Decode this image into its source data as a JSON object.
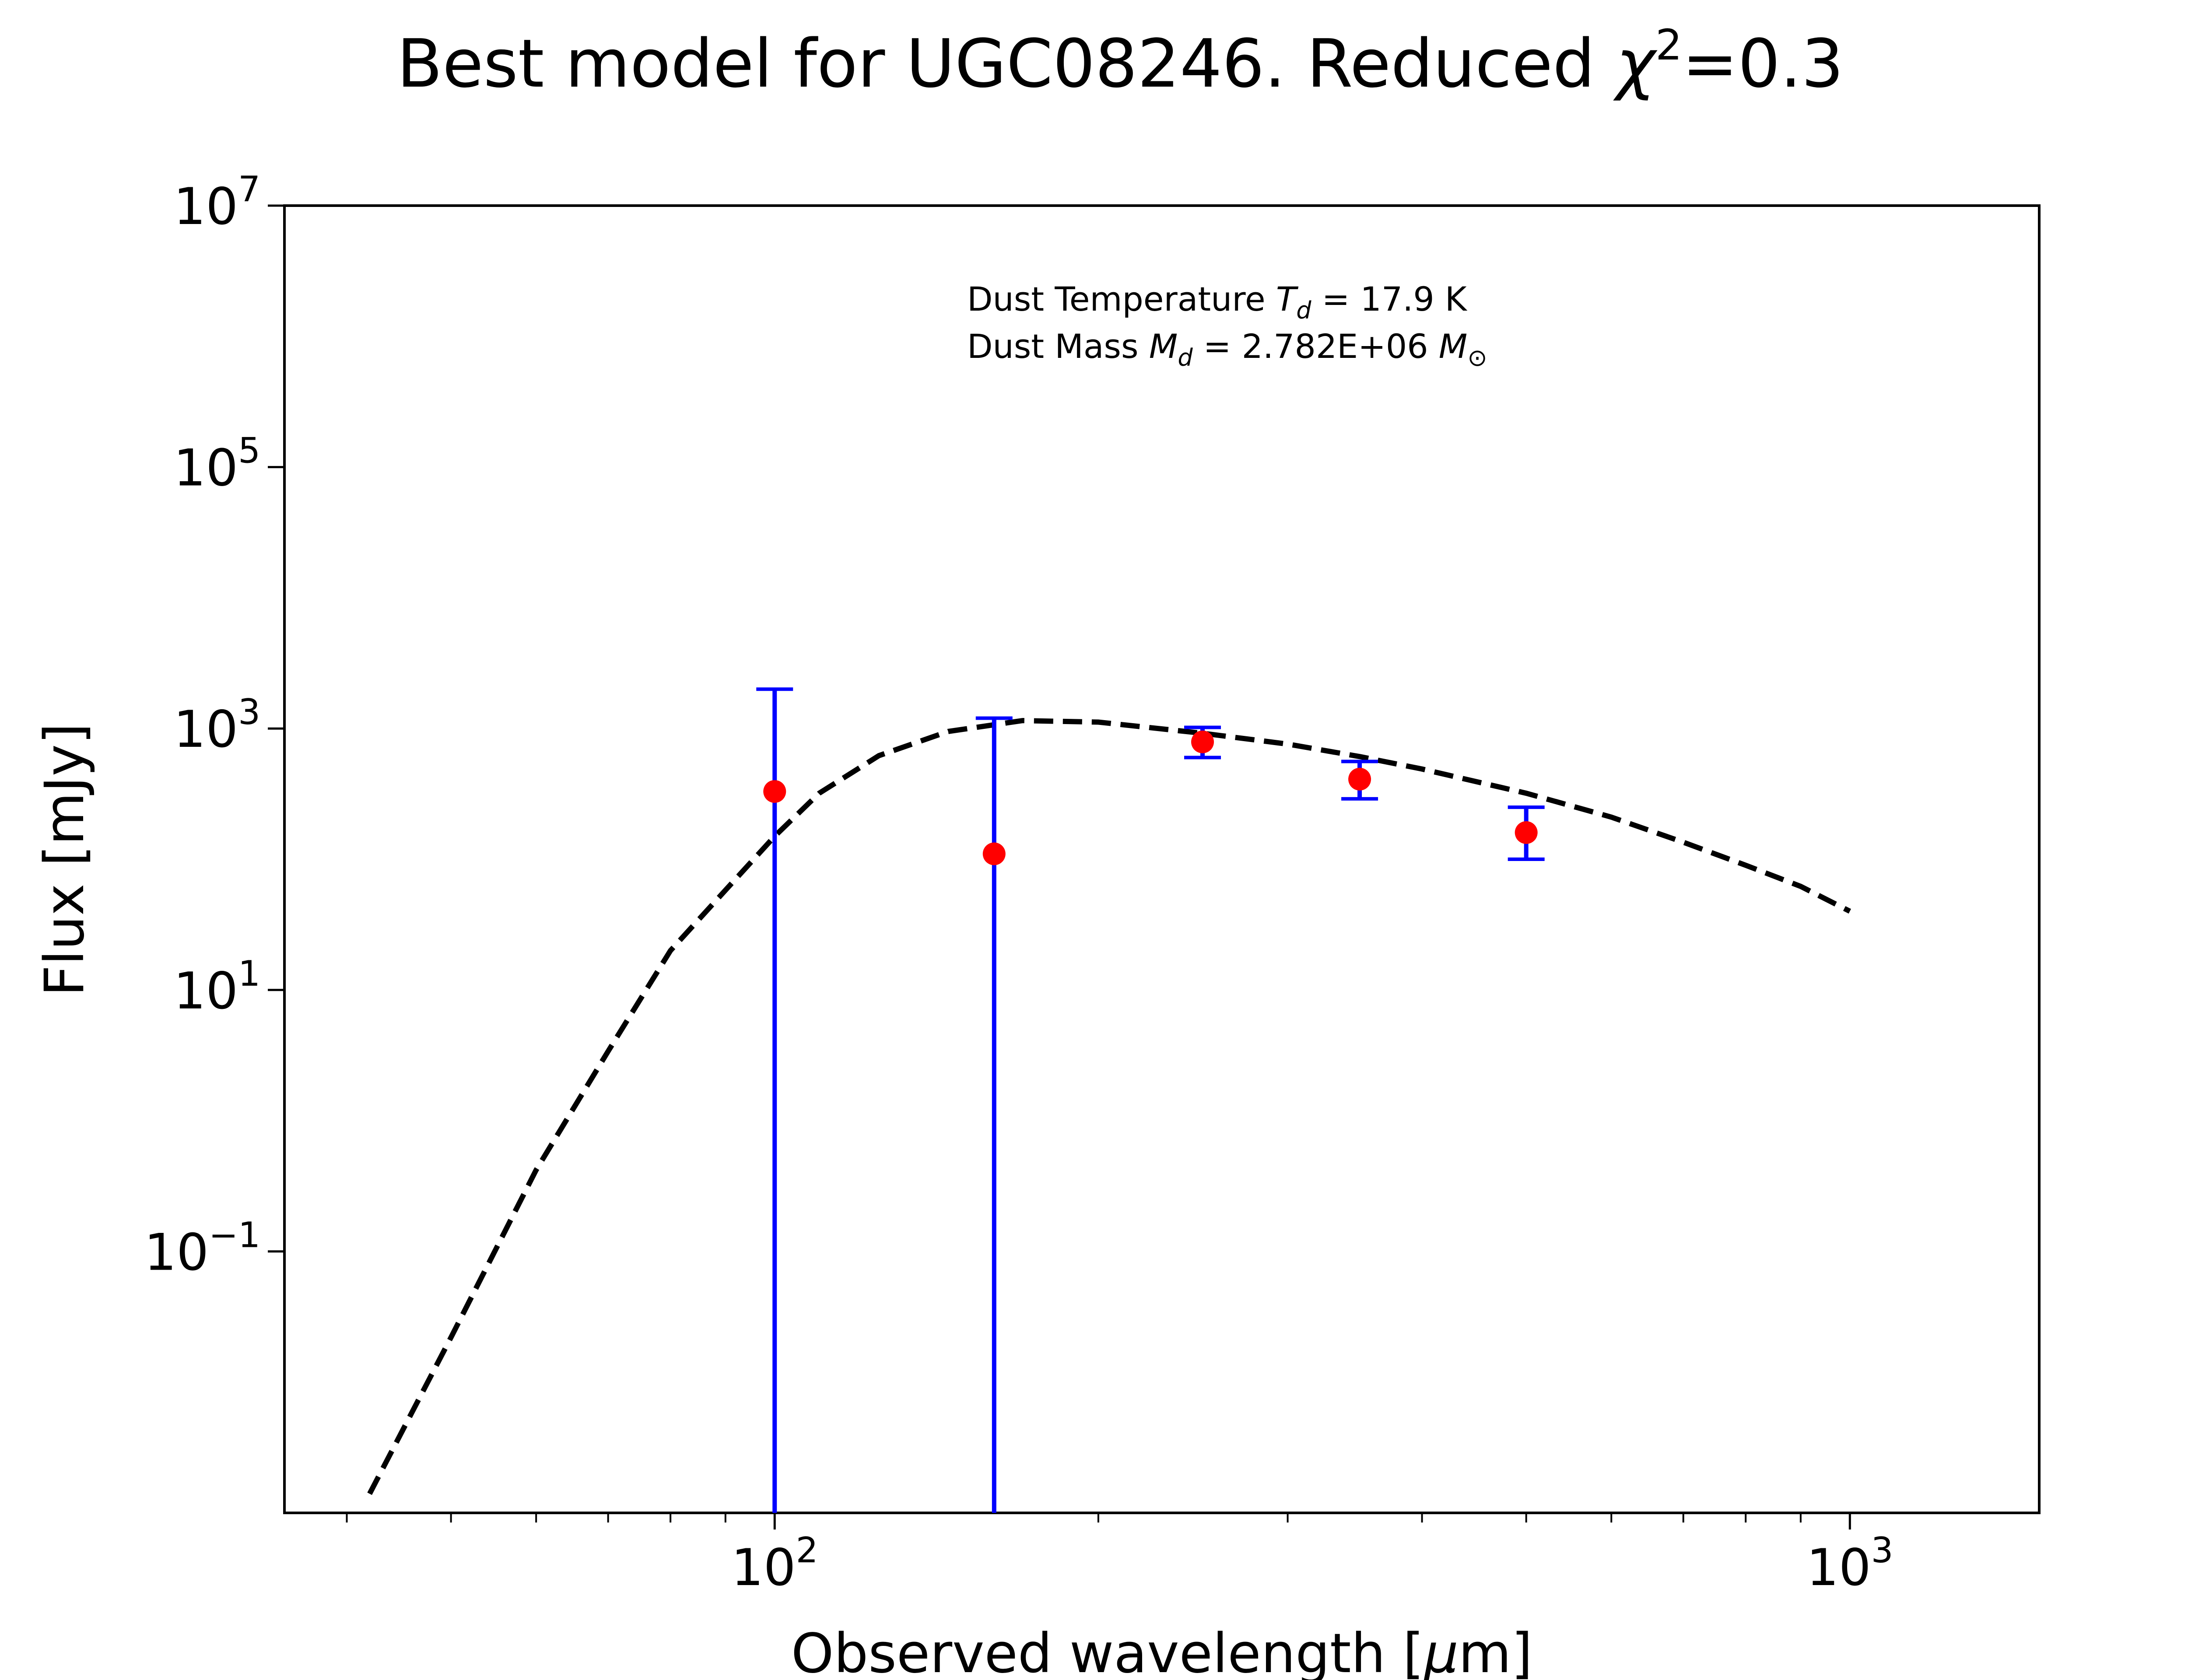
{
  "chart_data": {
    "type": "scatter",
    "title": "Best model for UGC08246. Reduced χ²=0.3",
    "title_parts": {
      "prefix": "Best model for UGC08246. Reduced ",
      "symbol": "χ",
      "exponent": "2",
      "suffix": "=0.3"
    },
    "xlabel": "Observed wavelength [μm]",
    "xlabel_parts": {
      "prefix": "Observed wavelength [",
      "symbol": "μ",
      "suffix": "m]"
    },
    "ylabel": "Flux [mJy]",
    "x_scale": "log",
    "y_scale": "log",
    "xlim": [
      35,
      1500
    ],
    "ylim": [
      0.001,
      10000000
    ],
    "x_ticks": [
      {
        "value": 100,
        "base": "10",
        "exp": "2"
      },
      {
        "value": 1000,
        "base": "10",
        "exp": "3"
      }
    ],
    "y_ticks": [
      {
        "value": 0.1,
        "base": "10",
        "exp": "−1"
      },
      {
        "value": 10,
        "base": "10",
        "exp": "1"
      },
      {
        "value": 1000,
        "base": "10",
        "exp": "3"
      },
      {
        "value": 100000,
        "base": "10",
        "exp": "5"
      },
      {
        "value": 10000000,
        "base": "10",
        "exp": "7"
      }
    ],
    "grid": false,
    "annotation": {
      "line1": {
        "prefix": "Dust Temperature ",
        "symbol": "T",
        "sub": "d",
        "suffix": " = 17.9 K"
      },
      "line2": {
        "prefix": "Dust Mass ",
        "symbol": "M",
        "sub": "d",
        "mid": " = 2.782E+06 ",
        "symbol2": "M",
        "sub2": "⊙"
      }
    },
    "series": [
      {
        "role": "model",
        "style": "dashed",
        "color": "#000000",
        "x": [
          42,
          50,
          60,
          70,
          80,
          90,
          100,
          110,
          125,
          145,
          170,
          200,
          250,
          300,
          350,
          400,
          500,
          600,
          700,
          800,
          900,
          1000
        ],
        "y": [
          0.0014,
          0.022,
          0.42,
          3.4,
          20,
          58,
          150,
          320,
          620,
          950,
          1150,
          1120,
          920,
          760,
          610,
          490,
          320,
          210,
          135,
          90,
          62,
          40
        ]
      },
      {
        "role": "data",
        "marker": "circle",
        "color": "#ff0000",
        "errorbar_color": "#0000ff",
        "points": [
          {
            "x": 100,
            "y": 330,
            "y_low": 0.001,
            "y_high": 2000
          },
          {
            "x": 160,
            "y": 110,
            "y_low": 0.001,
            "y_high": 1200
          },
          {
            "x": 250,
            "y": 790,
            "y_low": 600,
            "y_high": 1020
          },
          {
            "x": 350,
            "y": 410,
            "y_low": 290,
            "y_high": 560
          },
          {
            "x": 500,
            "y": 160,
            "y_low": 100,
            "y_high": 250
          }
        ]
      }
    ]
  }
}
